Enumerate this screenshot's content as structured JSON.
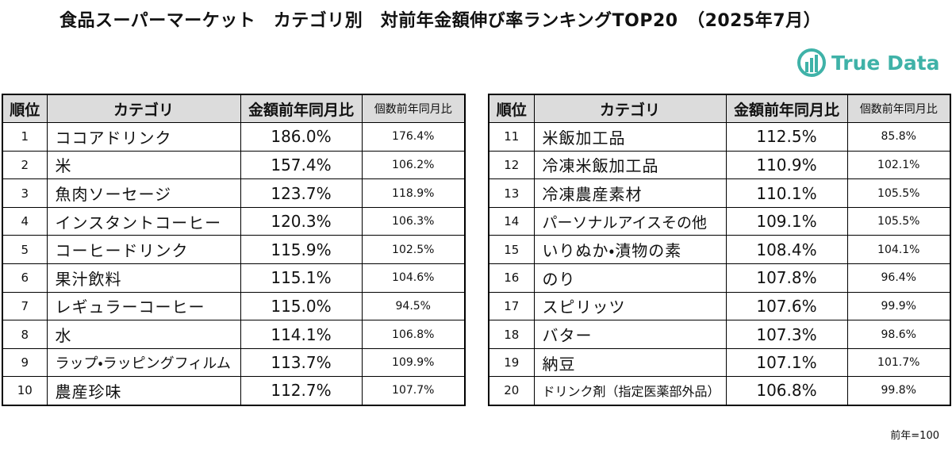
{
  "header": {
    "title": "食品スーパーマーケット　カテゴリ別　対前年金額伸び率ランキングTOP20　（2025年7月）"
  },
  "logo": {
    "text": "True Data"
  },
  "tables": [
    {
      "columns": [
        "順位",
        "カテゴリ",
        "金額前年同月比",
        "個数前年同月比"
      ],
      "rows": [
        [
          "1",
          "ココアドリンク",
          "186.0%",
          "176.4%"
        ],
        [
          "2",
          "米",
          "157.4%",
          "106.2%"
        ],
        [
          "3",
          "魚肉ソーセージ",
          "123.7%",
          "118.9%"
        ],
        [
          "4",
          "インスタントコーヒー",
          "120.3%",
          "106.3%"
        ],
        [
          "5",
          "コーヒードリンク",
          "115.9%",
          "102.5%"
        ],
        [
          "6",
          "果汁飲料",
          "115.1%",
          "104.6%"
        ],
        [
          "7",
          "レギュラーコーヒー",
          "115.0%",
          "94.5%"
        ],
        [
          "8",
          "水",
          "114.1%",
          "106.8%"
        ],
        [
          "9",
          "ラップ・ラッピングフィルム",
          "113.7%",
          "109.9%"
        ],
        [
          "10",
          "農産珍味",
          "112.7%",
          "107.7%"
        ]
      ]
    },
    {
      "columns": [
        "順位",
        "カテゴリ",
        "金額前年同月比",
        "個数前年同月比"
      ],
      "rows": [
        [
          "11",
          "米飯加工品",
          "112.5%",
          "85.8%"
        ],
        [
          "12",
          "冷凍米飯加工品",
          "110.9%",
          "102.1%"
        ],
        [
          "13",
          "冷凍農産素材",
          "110.1%",
          "105.5%"
        ],
        [
          "14",
          "パーソナルアイスその他",
          "109.1%",
          "105.5%"
        ],
        [
          "15",
          "いりぬか・漬物の素",
          "108.4%",
          "104.1%"
        ],
        [
          "16",
          "のり",
          "107.8%",
          "96.4%"
        ],
        [
          "17",
          "スピリッツ",
          "107.6%",
          "99.9%"
        ],
        [
          "18",
          "バター",
          "107.3%",
          "98.6%"
        ],
        [
          "19",
          "納豆",
          "107.1%",
          "101.7%"
        ],
        [
          "20",
          "ドリンク剤（指定医薬部外品）",
          "106.8%",
          "99.8%"
        ]
      ]
    }
  ],
  "footnote": "前年=100"
}
